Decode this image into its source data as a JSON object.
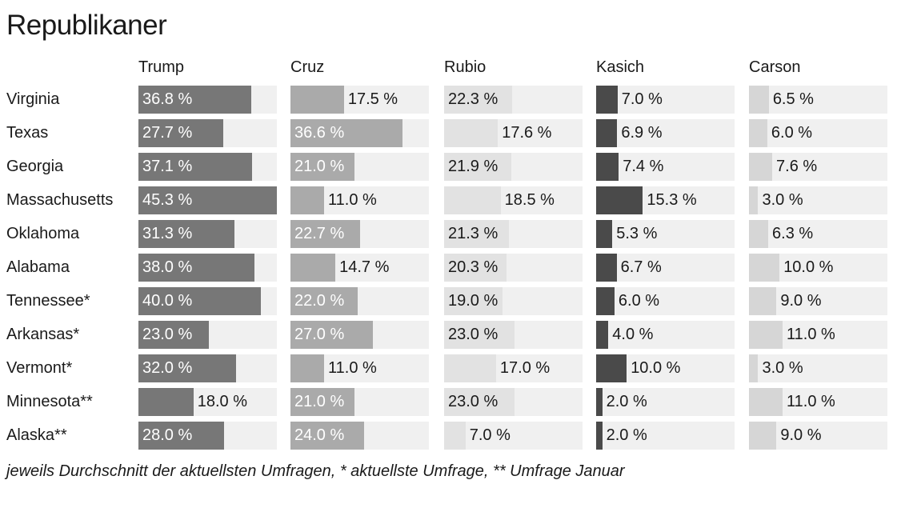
{
  "title": "Republikaner",
  "footnote": "jeweils Durchschnitt der aktuellsten Umfragen, * aktuellste Umfrage, ** Umfrage Januar",
  "colors": {
    "track": "#f0f0f0",
    "Trump": "#777777",
    "Cruz": "#aaaaaa",
    "Rubio": "#e2e2e2",
    "Kasich": "#4a4a4a",
    "Carson": "#d6d6d6"
  },
  "chart_data": {
    "type": "bar",
    "title": "Republikaner",
    "xmax": 45.3,
    "value_suffix": " %",
    "categories": [
      "Virginia",
      "Texas",
      "Georgia",
      "Massachusetts",
      "Oklahoma",
      "Alabama",
      "Tennessee*",
      "Arkansas*",
      "Vermont*",
      "Minnesota**",
      "Alaska**"
    ],
    "series": [
      {
        "name": "Trump",
        "values": [
          36.8,
          27.7,
          37.1,
          45.3,
          31.3,
          38.0,
          40.0,
          23.0,
          32.0,
          18.0,
          28.0
        ],
        "labels": [
          "36.8 %",
          "27.7 %",
          "37.1 %",
          "45.3 %",
          "31.3 %",
          "38.0 %",
          "40.0 %",
          "23.0 %",
          "32.0 %",
          "18.0 %",
          "28.0 %"
        ]
      },
      {
        "name": "Cruz",
        "values": [
          17.5,
          36.6,
          21.0,
          11.0,
          22.7,
          14.7,
          22.0,
          27.0,
          11.0,
          21.0,
          24.0
        ],
        "labels": [
          "17.5 %",
          "36.6 %",
          "21.0 %",
          "11.0 %",
          "22.7 %",
          "14.7 %",
          "22.0 %",
          "27.0 %",
          "11.0 %",
          "21.0 %",
          "24.0 %"
        ]
      },
      {
        "name": "Rubio",
        "values": [
          22.3,
          17.6,
          21.9,
          18.5,
          21.3,
          20.3,
          19.0,
          23.0,
          17.0,
          23.0,
          7.0
        ],
        "labels": [
          "22.3 %",
          "17.6 %",
          "21.9 %",
          "18.5 %",
          "21.3 %",
          "20.3 %",
          "19.0 %",
          "23.0 %",
          "17.0 %",
          "23.0 %",
          "7.0 %"
        ]
      },
      {
        "name": "Kasich",
        "values": [
          7.0,
          6.9,
          7.4,
          15.3,
          5.3,
          6.7,
          6.0,
          4.0,
          10.0,
          2.0,
          2.0
        ],
        "labels": [
          "7.0 %",
          "6.9 %",
          "7.4 %",
          "15.3 %",
          "5.3 %",
          "6.7 %",
          "6.0 %",
          "4.0 %",
          "10.0 %",
          "2.0 %",
          "2.0 %"
        ]
      },
      {
        "name": "Carson",
        "values": [
          6.5,
          6.0,
          7.6,
          3.0,
          6.3,
          10.0,
          9.0,
          11.0,
          3.0,
          11.0,
          9.0
        ],
        "labels": [
          "6.5 %",
          "6.0 %",
          "7.6 %",
          "3.0 %",
          "6.3 %",
          "10.0 %",
          "9.0 %",
          "11.0 %",
          "3.0 %",
          "11.0 %",
          "9.0 %"
        ]
      }
    ]
  }
}
